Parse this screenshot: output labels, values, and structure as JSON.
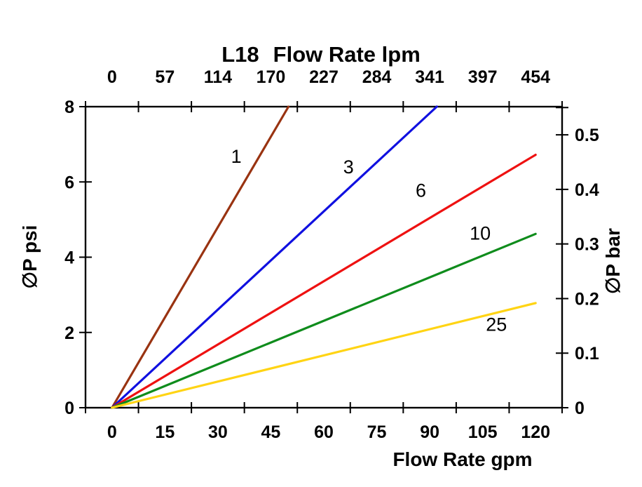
{
  "title": {
    "model": "L18",
    "text": "Flow Rate lpm"
  },
  "chart_data": {
    "type": "line",
    "top_axis": {
      "label": "Flow Rate lpm",
      "tick_labels": [
        "0",
        "57",
        "114",
        "170",
        "227",
        "284",
        "341",
        "397",
        "454"
      ]
    },
    "bottom_axis": {
      "label": "Flow Rate gpm",
      "tick_labels": [
        "0",
        "15",
        "30",
        "45",
        "60",
        "75",
        "90",
        "105",
        "120"
      ],
      "values_gpm": [
        0,
        15,
        30,
        45,
        60,
        75,
        90,
        105,
        120
      ]
    },
    "left_axis": {
      "label": "∅P psi",
      "tick_labels": [
        "0",
        "2",
        "4",
        "6",
        "8"
      ],
      "tick_values": [
        0,
        2,
        4,
        6,
        8
      ],
      "range": [
        0,
        8
      ]
    },
    "right_axis": {
      "label": "∅P bar",
      "tick_labels": [
        "0",
        "0.1",
        "0.2",
        "0.3",
        "0.4",
        "0.5"
      ],
      "tick_values": [
        0,
        0.1,
        0.2,
        0.3,
        0.4,
        0.5
      ],
      "extra_tick_bar": 0.55,
      "psi_per_bar": 14.504
    },
    "grid": false,
    "legend": "inline-labels",
    "series": [
      {
        "name": "1",
        "color": "#993311",
        "points_gpm_psi": [
          [
            0,
            0
          ],
          [
            50,
            8
          ]
        ],
        "label_at_gpm_psi": [
          35.2,
          6.68
        ]
      },
      {
        "name": "3",
        "color": "#1010E0",
        "points_gpm_psi": [
          [
            0,
            0
          ],
          [
            92,
            8
          ]
        ],
        "label_at_gpm_psi": [
          67.0,
          6.4
        ]
      },
      {
        "name": "6",
        "color": "#EE1111",
        "points_gpm_psi": [
          [
            0,
            0
          ],
          [
            120,
            6.72
          ]
        ],
        "label_at_gpm_psi": [
          87.5,
          5.77
        ]
      },
      {
        "name": "10",
        "color": "#0F8C1C",
        "points_gpm_psi": [
          [
            0,
            0
          ],
          [
            120,
            4.62
          ]
        ],
        "label_at_gpm_psi": [
          104.3,
          4.63
        ]
      },
      {
        "name": "25",
        "color": "#FFD414",
        "points_gpm_psi": [
          [
            0,
            0
          ],
          [
            120,
            2.78
          ]
        ],
        "label_at_gpm_psi": [
          108.9,
          2.21
        ]
      }
    ]
  }
}
